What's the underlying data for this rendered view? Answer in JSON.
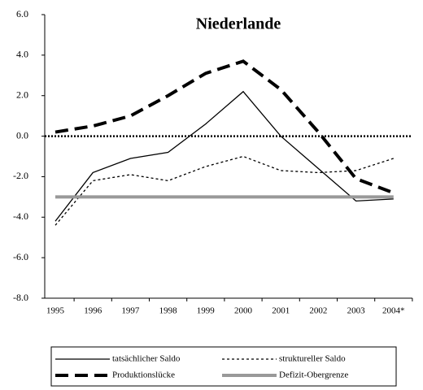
{
  "chart_data": {
    "type": "line",
    "title": "Niederlande",
    "categories": [
      "1995",
      "1996",
      "1997",
      "1998",
      "1999",
      "2000",
      "2001",
      "2002",
      "2003",
      "2004*"
    ],
    "series": [
      {
        "name": "tatsächlicher Saldo",
        "color": "#000000",
        "line_style": "solid",
        "width": 1.3,
        "values": [
          -4.2,
          -1.8,
          -1.1,
          -0.8,
          0.6,
          2.2,
          0.0,
          -1.6,
          -3.2,
          -3.1
        ]
      },
      {
        "name": "struktureller Saldo",
        "color": "#000000",
        "line_style": "dotted",
        "width": 1.3,
        "values": [
          -4.4,
          -2.2,
          -1.9,
          -2.2,
          -1.5,
          -1.0,
          -1.7,
          -1.8,
          -1.7,
          -1.1
        ]
      },
      {
        "name": "Produktionslücke",
        "color": "#000000",
        "line_style": "dashed",
        "width": 4,
        "values": [
          0.2,
          0.5,
          1.0,
          2.0,
          3.1,
          3.7,
          2.3,
          0.2,
          -2.1,
          -2.8
        ]
      },
      {
        "name": "Defizit-Obergrenze",
        "color": "#999999",
        "line_style": "solid",
        "width": 4,
        "values": [
          -3.0,
          -3.0,
          -3.0,
          -3.0,
          -3.0,
          -3.0,
          -3.0,
          -3.0,
          -3.0,
          -3.0
        ]
      }
    ],
    "ylim": [
      -8,
      6
    ],
    "yticks": [
      {
        "value": -8,
        "label": "-8.0"
      },
      {
        "value": -6,
        "label": "-6.0"
      },
      {
        "value": -4,
        "label": "-4.0"
      },
      {
        "value": -2,
        "label": "-2.0"
      },
      {
        "value": 0,
        "label": "0.0"
      },
      {
        "value": 2,
        "label": "2.0"
      },
      {
        "value": 4,
        "label": "4.0"
      },
      {
        "value": 6,
        "label": "6.0"
      }
    ],
    "legend": "bottom"
  }
}
